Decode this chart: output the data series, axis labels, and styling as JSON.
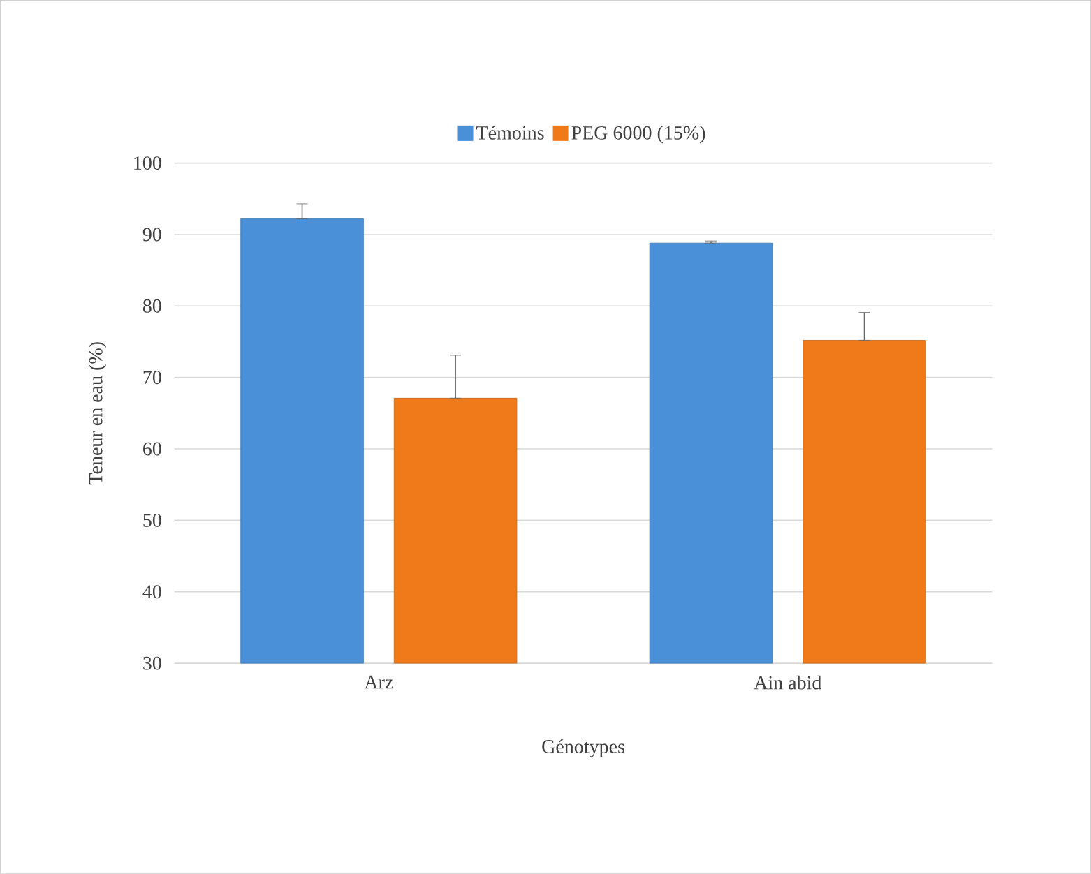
{
  "chart_data": {
    "type": "bar",
    "xlabel": "Génotypes",
    "ylabel": "Teneur en eau (%)",
    "categories": [
      "Arz",
      "Ain abid"
    ],
    "series": [
      {
        "name": "Témoins",
        "color": "#4a90d9",
        "values": [
          92.2,
          88.8
        ],
        "errors": [
          [
            92.2,
            94.3
          ],
          [
            88.8,
            89.1
          ]
        ]
      },
      {
        "name": "PEG 6000 (15%)",
        "color": "#f07a1a",
        "values": [
          67.1,
          75.2
        ],
        "errors": [
          [
            67.1,
            73.1
          ],
          [
            75.2,
            79.1
          ]
        ]
      }
    ],
    "ylim": [
      30,
      100
    ],
    "yticks": [
      30,
      40,
      50,
      60,
      70,
      80,
      90,
      100
    ],
    "grid": "y",
    "legend": "top"
  }
}
